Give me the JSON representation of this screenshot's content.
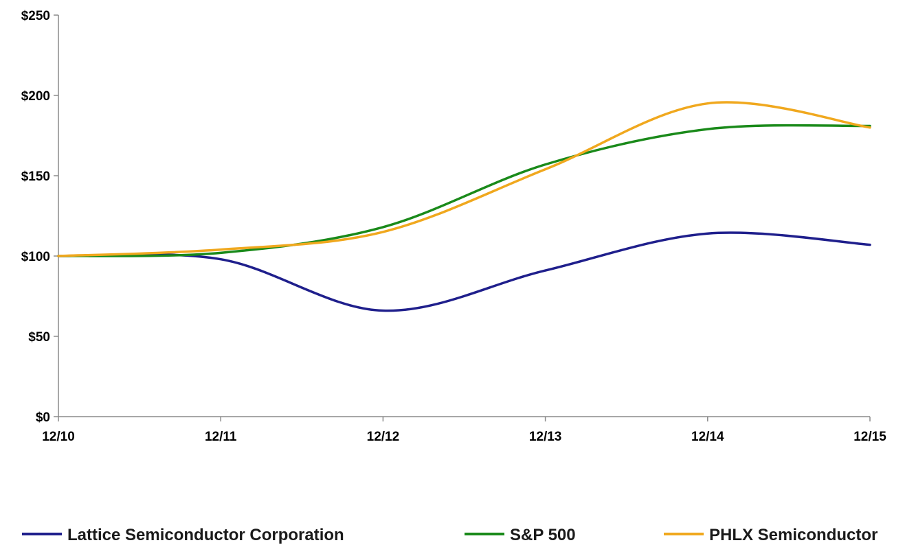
{
  "chart_data": {
    "type": "line",
    "categories": [
      "12/10",
      "12/11",
      "12/12",
      "12/13",
      "12/14",
      "12/15"
    ],
    "y_ticks": [
      "$0",
      "$50",
      "$100",
      "$150",
      "$200",
      "$250"
    ],
    "ylim": [
      0,
      250
    ],
    "grid": false,
    "legend_position": "bottom",
    "series": [
      {
        "name": "Lattice Semiconductor Corporation",
        "color": "#1f1f8c",
        "values": [
          100,
          98,
          66,
          91,
          114,
          107
        ]
      },
      {
        "name": "S&P 500",
        "color": "#1a8a1a",
        "values": [
          100,
          102,
          118,
          157,
          179,
          181
        ]
      },
      {
        "name": "PHLX Semiconductor",
        "color": "#f0a81e",
        "values": [
          100,
          104,
          115,
          154,
          195,
          180
        ]
      }
    ]
  }
}
